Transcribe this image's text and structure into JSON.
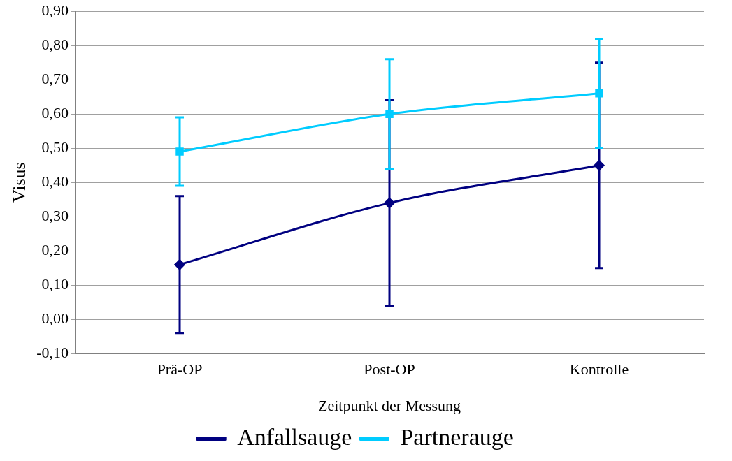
{
  "chart_data": {
    "type": "line",
    "xlabel": "Zeitpunkt der Messung",
    "ylabel": "Visus",
    "categories": [
      "Prä-OP",
      "Post-OP",
      "Kontrolle"
    ],
    "series": [
      {
        "name": "Anfallsauge",
        "color": "#000080",
        "marker": "diamond",
        "values": [
          0.16,
          0.34,
          0.45
        ],
        "errors": [
          [
            -0.04,
            0.36
          ],
          [
            0.04,
            0.64
          ],
          [
            0.15,
            0.75
          ]
        ]
      },
      {
        "name": "Partnerauge",
        "color": "#00ccff",
        "marker": "square",
        "values": [
          0.49,
          0.6,
          0.66
        ],
        "errors": [
          [
            0.39,
            0.59
          ],
          [
            0.44,
            0.76
          ],
          [
            0.5,
            0.82
          ]
        ]
      }
    ],
    "ylim": [
      -0.1,
      0.9
    ],
    "yticks": [
      {
        "value": -0.1,
        "label": "-0,10"
      },
      {
        "value": 0,
        "label": "0,00"
      },
      {
        "value": 0.1,
        "label": "0,10"
      },
      {
        "value": 0.2,
        "label": "0,20"
      },
      {
        "value": 0.3,
        "label": "0,30"
      },
      {
        "value": 0.4,
        "label": "0,40"
      },
      {
        "value": 0.5,
        "label": "0,50"
      },
      {
        "value": 0.6,
        "label": "0,60"
      },
      {
        "value": 0.7,
        "label": "0,70"
      },
      {
        "value": 0.8,
        "label": "0,80"
      },
      {
        "value": 0.9,
        "label": "0,90"
      }
    ],
    "grid": "y",
    "legend": "bottom",
    "line_style": "solid"
  }
}
